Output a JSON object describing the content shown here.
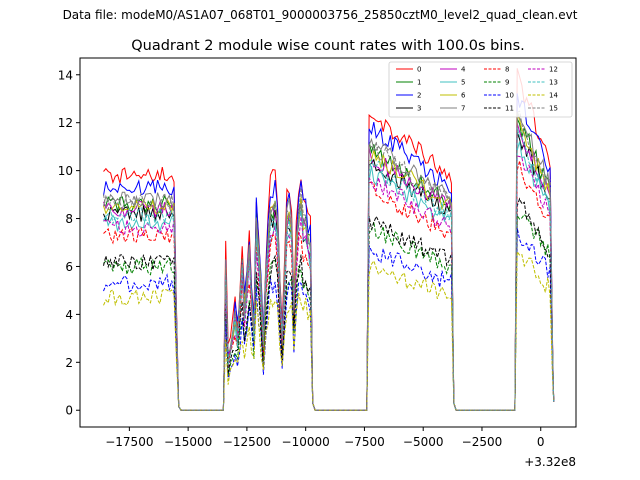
{
  "chart_data": {
    "type": "line",
    "suptitle": "Data file: modeM0/AS1A07_068T01_9000003756_25850cztM0_level2_quad_clean.evt",
    "title": "Quadrant 2 module wise count rates with 100.0s bins.",
    "xlabel": "",
    "ylabel": "",
    "x_offset_label": "+3.32e8",
    "xlim": [
      -19600,
      1500
    ],
    "ylim": [
      -0.7,
      14.7
    ],
    "x_ticks": [
      -17500,
      -15000,
      -12500,
      -10000,
      -7500,
      -5000,
      -2500,
      0
    ],
    "x_tick_labels": [
      "−17500",
      "−15000",
      "−12500",
      "−10000",
      "−7500",
      "−5000",
      "−2500",
      "0"
    ],
    "y_ticks": [
      0,
      2,
      4,
      6,
      8,
      10,
      12,
      14
    ],
    "y_tick_labels": [
      "0",
      "2",
      "4",
      "6",
      "8",
      "10",
      "12",
      "14"
    ],
    "grid": false,
    "legend_placement": "top-right",
    "legend_columns": 4,
    "bin_width_s": 100,
    "segments": [
      {
        "x_start": -18600,
        "x_end": -15600,
        "shape": "flat"
      },
      {
        "x_start": -13400,
        "x_end": -9800,
        "shape": "bumpy"
      },
      {
        "x_start": -7300,
        "x_end": -3800,
        "shape": "decay"
      },
      {
        "x_start": -1000,
        "x_end": 500,
        "shape": "decay_short"
      }
    ],
    "series": [
      {
        "name": "0",
        "color": "#ff0000",
        "dashed": false,
        "level": 9.8
      },
      {
        "name": "1",
        "color": "#008000",
        "dashed": false,
        "level": 8.6
      },
      {
        "name": "2",
        "color": "#0000ff",
        "dashed": false,
        "level": 9.3
      },
      {
        "name": "3",
        "color": "#000000",
        "dashed": false,
        "level": 8.2
      },
      {
        "name": "4",
        "color": "#bf00bf",
        "dashed": false,
        "level": 8.4
      },
      {
        "name": "5",
        "color": "#40c0c0",
        "dashed": false,
        "level": 7.8
      },
      {
        "name": "6",
        "color": "#bfbf00",
        "dashed": false,
        "level": 8.5
      },
      {
        "name": "7",
        "color": "#808080",
        "dashed": false,
        "level": 8.8
      },
      {
        "name": "8",
        "color": "#ff0000",
        "dashed": true,
        "level": 7.3
      },
      {
        "name": "9",
        "color": "#008000",
        "dashed": true,
        "level": 6.0
      },
      {
        "name": "10",
        "color": "#0000ff",
        "dashed": true,
        "level": 5.3
      },
      {
        "name": "11",
        "color": "#000000",
        "dashed": true,
        "level": 6.2
      },
      {
        "name": "12",
        "color": "#bf00bf",
        "dashed": true,
        "level": 7.6
      },
      {
        "name": "13",
        "color": "#40c0c0",
        "dashed": true,
        "level": 8.1
      },
      {
        "name": "14",
        "color": "#bfbf00",
        "dashed": true,
        "level": 4.7
      },
      {
        "name": "15",
        "color": "#808080",
        "dashed": true,
        "level": 8.7
      }
    ]
  }
}
